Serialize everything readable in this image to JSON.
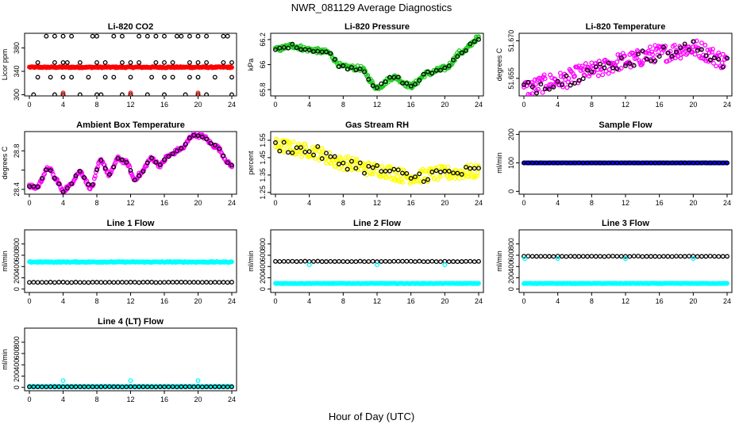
{
  "figure": {
    "title": "NWR_081129  Average Diagnostics",
    "xlabel": "Hour of Day (UTC)"
  },
  "colors": {
    "red": "#ff0000",
    "green": "#22cc22",
    "magenta": "#ff00ff",
    "yellow": "#ffff00",
    "cyan": "#00ffff",
    "blue": "#0000ff",
    "black": "#000000"
  },
  "chart_data": [
    {
      "id": "co2",
      "type": "scatter",
      "title": "Li-820 CO2",
      "ylabel": "Licor ppm",
      "xlim": [
        0,
        24
      ],
      "xticks": [
        0,
        4,
        8,
        12,
        16,
        20,
        24
      ],
      "ylim": [
        298,
        405
      ],
      "yticks": [
        300,
        340,
        380
      ],
      "series": [
        {
          "name": "samples",
          "color": "#ff0000",
          "pattern": "line",
          "value": 347,
          "noise": 1
        },
        {
          "name": "ref-400",
          "color": "#000000",
          "pattern": "points",
          "x": [
            2,
            3,
            4,
            5,
            7.5,
            8,
            10,
            11,
            13,
            14,
            15,
            16,
            17.5,
            18,
            19,
            20,
            21,
            23,
            23.5
          ],
          "value": 400
        },
        {
          "name": "ref-355",
          "color": "#000000",
          "pattern": "points",
          "x": [
            1,
            3,
            4,
            4.5,
            6,
            8,
            9,
            11,
            12,
            13,
            15,
            16,
            17,
            19,
            20,
            21,
            23,
            24
          ],
          "value": 355
        },
        {
          "name": "ref-330",
          "color": "#000000",
          "pattern": "points",
          "x": [
            1,
            2.5,
            4,
            5,
            7,
            9,
            10,
            12,
            14.5,
            16,
            17,
            19,
            20,
            22,
            24
          ],
          "value": 330
        },
        {
          "name": "ref-300",
          "color": "#000000",
          "pattern": "points",
          "x": [
            0.5,
            3,
            4,
            6,
            8,
            8.5,
            11,
            12,
            14,
            16,
            18.5,
            20,
            21,
            24
          ],
          "value": 300
        },
        {
          "name": "target",
          "color": "#ff0000",
          "pattern": "points",
          "x": [
            4,
            12,
            20
          ],
          "value": 303
        }
      ]
    },
    {
      "id": "pressure",
      "type": "scatter",
      "title": "Li-820 Pressure",
      "ylabel": "kPa",
      "xlim": [
        0,
        24
      ],
      "xticks": [
        0,
        4,
        8,
        12,
        16,
        20,
        24
      ],
      "ylim": [
        65.75,
        66.25
      ],
      "yticks": [
        65.8,
        66.0,
        66.2
      ],
      "keys": {
        "x": [
          0,
          2,
          4,
          6,
          8,
          10,
          12,
          14,
          16,
          18,
          20,
          22,
          24
        ],
        "y": [
          66.12,
          66.15,
          66.12,
          66.1,
          65.98,
          65.97,
          65.82,
          65.9,
          65.83,
          65.93,
          65.97,
          66.1,
          66.21
        ]
      },
      "series": [
        {
          "name": "samples",
          "color": "#22cc22",
          "pattern": "keys",
          "noise": 0.02
        },
        {
          "name": "ref",
          "color": "#000000",
          "pattern": "keys",
          "noise": 0.015,
          "stride": 0.5
        }
      ]
    },
    {
      "id": "licor-temp",
      "type": "scatter",
      "title": "Li-820 Temperature",
      "ylabel": "degrees C",
      "xlim": [
        0,
        24
      ],
      "xticks": [
        0,
        4,
        8,
        12,
        16,
        20,
        24
      ],
      "ylim": [
        51.648,
        51.673
      ],
      "yticks": [
        51.655,
        51.67
      ],
      "ytick_labels": [
        "51.655",
        "51.670"
      ],
      "keys": {
        "x": [
          0,
          4,
          8,
          12,
          16,
          20,
          24
        ],
        "y": [
          51.651,
          51.654,
          51.658,
          51.662,
          51.665,
          51.667,
          51.662
        ]
      },
      "series": [
        {
          "name": "samples",
          "color": "#ff00ff",
          "pattern": "keys",
          "noise": 0.0035
        },
        {
          "name": "ref",
          "color": "#000000",
          "pattern": "keys",
          "noise": 0.003,
          "stride": 0.5
        }
      ]
    },
    {
      "id": "box-temp",
      "type": "scatter",
      "title": "Ambient Box Temperature",
      "ylabel": "degrees C",
      "xlim": [
        0,
        24
      ],
      "xticks": [
        0,
        4,
        8,
        12,
        16,
        20,
        24
      ],
      "ylim": [
        28.35,
        29.0
      ],
      "yticks": [
        28.4,
        28.6,
        28.8
      ],
      "ytick_labels": [
        "28.4",
        "",
        "28.8"
      ],
      "keys": {
        "x": [
          0,
          0.8,
          2.3,
          3.2,
          4,
          4.5,
          6,
          7.3,
          8.5,
          9.5,
          10.5,
          11.5,
          12.5,
          13,
          14.5,
          15.5,
          16.5,
          18,
          19.5,
          20.5,
          22,
          24
        ],
        "y": [
          28.43,
          28.42,
          28.62,
          28.5,
          28.38,
          28.42,
          28.58,
          28.42,
          28.7,
          28.55,
          28.72,
          28.68,
          28.5,
          28.55,
          28.72,
          28.65,
          28.75,
          28.82,
          28.97,
          28.95,
          28.85,
          28.65
        ]
      },
      "series": [
        {
          "name": "samples",
          "color": "#ff00ff",
          "pattern": "keys",
          "noise": 0.02
        },
        {
          "name": "ref",
          "color": "#000000",
          "pattern": "keys",
          "noise": 0.01,
          "stride": 0.5
        }
      ]
    },
    {
      "id": "rh",
      "type": "scatter",
      "title": "Gas Stream RH",
      "ylabel": "percent",
      "xlim": [
        0,
        24
      ],
      "xticks": [
        0,
        4,
        8,
        12,
        16,
        20,
        24
      ],
      "ylim": [
        1.24,
        1.6
      ],
      "yticks": [
        1.25,
        1.35,
        1.45,
        1.55
      ],
      "keys": {
        "x": [
          0,
          4,
          8,
          12,
          16,
          20,
          24
        ],
        "y": [
          1.52,
          1.49,
          1.42,
          1.38,
          1.34,
          1.36,
          1.37
        ]
      },
      "series": [
        {
          "name": "samples",
          "color": "#ffff00",
          "pattern": "keys",
          "noise": 0.04
        },
        {
          "name": "ref",
          "color": "#000000",
          "pattern": "keys",
          "noise": 0.035,
          "stride": 0.5
        }
      ]
    },
    {
      "id": "sample-flow",
      "type": "scatter",
      "title": "Sample Flow",
      "ylabel": "ml/min",
      "xlim": [
        0,
        24
      ],
      "xticks": [
        0,
        4,
        8,
        12,
        16,
        20,
        24
      ],
      "ylim": [
        -10,
        210
      ],
      "yticks": [
        0,
        100,
        200
      ],
      "series": [
        {
          "name": "samples",
          "color": "#0000ff",
          "pattern": "line",
          "value": 100,
          "noise": 0.5
        },
        {
          "name": "ref",
          "color": "#000000",
          "pattern": "line",
          "value": 100,
          "noise": 0.3,
          "stride": 0.5
        }
      ]
    },
    {
      "id": "line1",
      "type": "scatter",
      "title": "Line 1 Flow",
      "ylabel": "ml/min",
      "xlim": [
        0,
        24
      ],
      "xticks": [
        0,
        4,
        8,
        12,
        16,
        20,
        24
      ],
      "ylim": [
        -60,
        1050
      ],
      "yticks": [
        0,
        200,
        400,
        600,
        800
      ],
      "series": [
        {
          "name": "samples",
          "color": "#00ffff",
          "pattern": "line",
          "value": 480,
          "noise": 8
        },
        {
          "name": "ref",
          "color": "#000000",
          "pattern": "line",
          "value": 120,
          "noise": 3,
          "stride": 0.5
        }
      ]
    },
    {
      "id": "line2",
      "type": "scatter",
      "title": "Line 2 Flow",
      "ylabel": "ml/min",
      "xlim": [
        0,
        24
      ],
      "xticks": [
        0,
        4,
        8,
        12,
        16,
        20,
        24
      ],
      "ylim": [
        -60,
        1050
      ],
      "yticks": [
        0,
        200,
        400,
        600,
        800
      ],
      "series": [
        {
          "name": "samples",
          "color": "#00ffff",
          "pattern": "line",
          "value": 100,
          "noise": 4
        },
        {
          "name": "ref",
          "color": "#000000",
          "pattern": "line",
          "value": 490,
          "noise": 4,
          "stride": 0.5
        },
        {
          "name": "outliers",
          "color": "#00ffff",
          "pattern": "points",
          "x": [
            4,
            12,
            20
          ],
          "value": 430
        }
      ]
    },
    {
      "id": "line3",
      "type": "scatter",
      "title": "Line 3 Flow",
      "ylabel": "ml/min",
      "xlim": [
        0,
        24
      ],
      "xticks": [
        0,
        4,
        8,
        12,
        16,
        20,
        24
      ],
      "ylim": [
        -60,
        1050
      ],
      "yticks": [
        0,
        200,
        400,
        600,
        800
      ],
      "series": [
        {
          "name": "samples",
          "color": "#00ffff",
          "pattern": "line",
          "value": 100,
          "noise": 4
        },
        {
          "name": "ref",
          "color": "#000000",
          "pattern": "line",
          "value": 580,
          "noise": 4,
          "stride": 0.5
        },
        {
          "name": "outliers",
          "color": "#00ffff",
          "pattern": "points",
          "x": [
            0.1,
            4,
            12,
            20
          ],
          "value": 540
        }
      ]
    },
    {
      "id": "line4",
      "type": "scatter",
      "title": "Line 4 (LT) Flow",
      "ylabel": "ml/min",
      "xlim": [
        0,
        24
      ],
      "xticks": [
        0,
        4,
        8,
        12,
        16,
        20,
        24
      ],
      "ylim": [
        -60,
        1050
      ],
      "yticks": [
        0,
        200,
        400,
        600,
        800
      ],
      "series": [
        {
          "name": "samples",
          "color": "#00ffff",
          "pattern": "line",
          "value": 15,
          "noise": 2
        },
        {
          "name": "ref",
          "color": "#000000",
          "pattern": "line",
          "value": 10,
          "noise": 2,
          "stride": 0.5
        },
        {
          "name": "outliers",
          "color": "#00ffff",
          "pattern": "points",
          "x": [
            4,
            12,
            20
          ],
          "value": 120
        }
      ]
    }
  ]
}
